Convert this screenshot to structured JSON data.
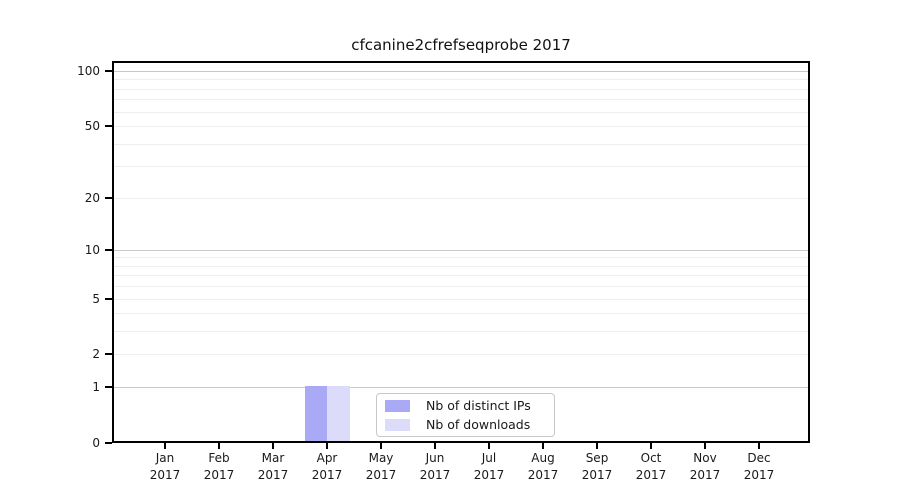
{
  "chart_data": {
    "type": "bar",
    "title": "cfcanine2cfrefseqprobe 2017",
    "months": [
      "Jan",
      "Feb",
      "Mar",
      "Apr",
      "May",
      "Jun",
      "Jul",
      "Aug",
      "Sep",
      "Oct",
      "Nov",
      "Dec"
    ],
    "year": "2017",
    "series": [
      {
        "name": "Nb of distinct IPs",
        "color": "#a9a9f5",
        "values": [
          0,
          0,
          0,
          1,
          0,
          0,
          0,
          0,
          0,
          0,
          0,
          0
        ]
      },
      {
        "name": "Nb of downloads",
        "color": "#dcdcfa",
        "values": [
          0,
          0,
          0,
          1,
          0,
          0,
          0,
          0,
          0,
          0,
          0,
          0
        ]
      }
    ],
    "y_ticks": [
      0,
      1,
      2,
      5,
      10,
      20,
      50,
      100
    ],
    "y_minor_grid": [
      3,
      4,
      6,
      7,
      8,
      9,
      30,
      40,
      60,
      70,
      80,
      90
    ],
    "y_major_grid": [
      1,
      10,
      100
    ],
    "scale": "log10(1+y)",
    "ylim": [
      0,
      113
    ],
    "grid": "horizontal",
    "legend_position": "bottom-center"
  },
  "colors": {
    "major_grid": "#c9c9c9",
    "minor_grid": "#eeeeee",
    "axis": "#000000",
    "text": "#1a1a1a",
    "legend_border": "#c8c8c8"
  }
}
